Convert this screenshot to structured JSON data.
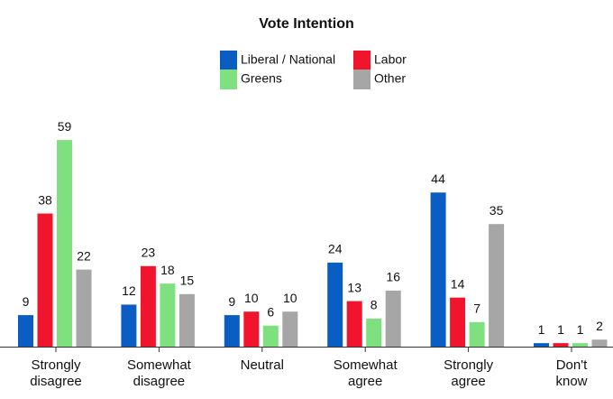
{
  "chart_data": {
    "type": "bar",
    "title": "Vote Intention",
    "categories": [
      "Strongly\ndisagree",
      "Somewhat\ndisagree",
      "Neutral",
      "Somewhat\nagree",
      "Strongly\nagree",
      "Don't\nknow"
    ],
    "series": [
      {
        "name": "Liberal / National",
        "color": "#0a5dc2",
        "values": [
          9,
          12,
          9,
          24,
          44,
          1
        ]
      },
      {
        "name": "Labor",
        "color": "#f0142d",
        "values": [
          38,
          23,
          10,
          13,
          14,
          1
        ]
      },
      {
        "name": "Greens",
        "color": "#7ee07e",
        "values": [
          59,
          18,
          6,
          8,
          7,
          1
        ]
      },
      {
        "name": "Other",
        "color": "#a6a6a6",
        "values": [
          22,
          15,
          10,
          16,
          35,
          2
        ]
      }
    ]
  }
}
